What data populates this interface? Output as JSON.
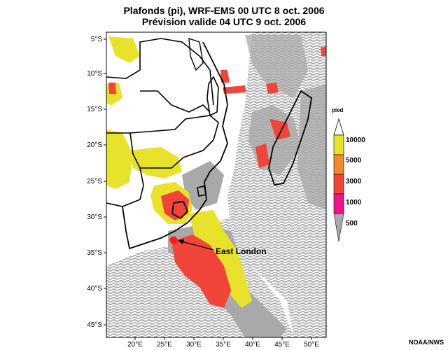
{
  "header": {
    "title_line1": "Plafonds (pi), WRF-EMS 00 UTC 8 oct. 2006",
    "title_line2": "Prévision valide 04 UTC 9 oct. 2006"
  },
  "axes": {
    "lat_labels": [
      "5°S",
      "10°S",
      "15°S",
      "20°S",
      "25°S",
      "30°S",
      "35°S",
      "40°S",
      "45°S"
    ],
    "lon_labels": [
      "20°E",
      "25°E",
      "30°E",
      "35°E",
      "40°E",
      "45°E",
      "50°E"
    ]
  },
  "annotation": {
    "label": "East London"
  },
  "legend": {
    "title": "pied",
    "levels": [
      "10000",
      "5000",
      "3000",
      "1000",
      "500"
    ],
    "colors": [
      "#e8e22a",
      "#f08a2a",
      "#f2453a",
      "#f0148c",
      "#a9a9a9"
    ]
  },
  "credit": "NOAA/NWS"
}
